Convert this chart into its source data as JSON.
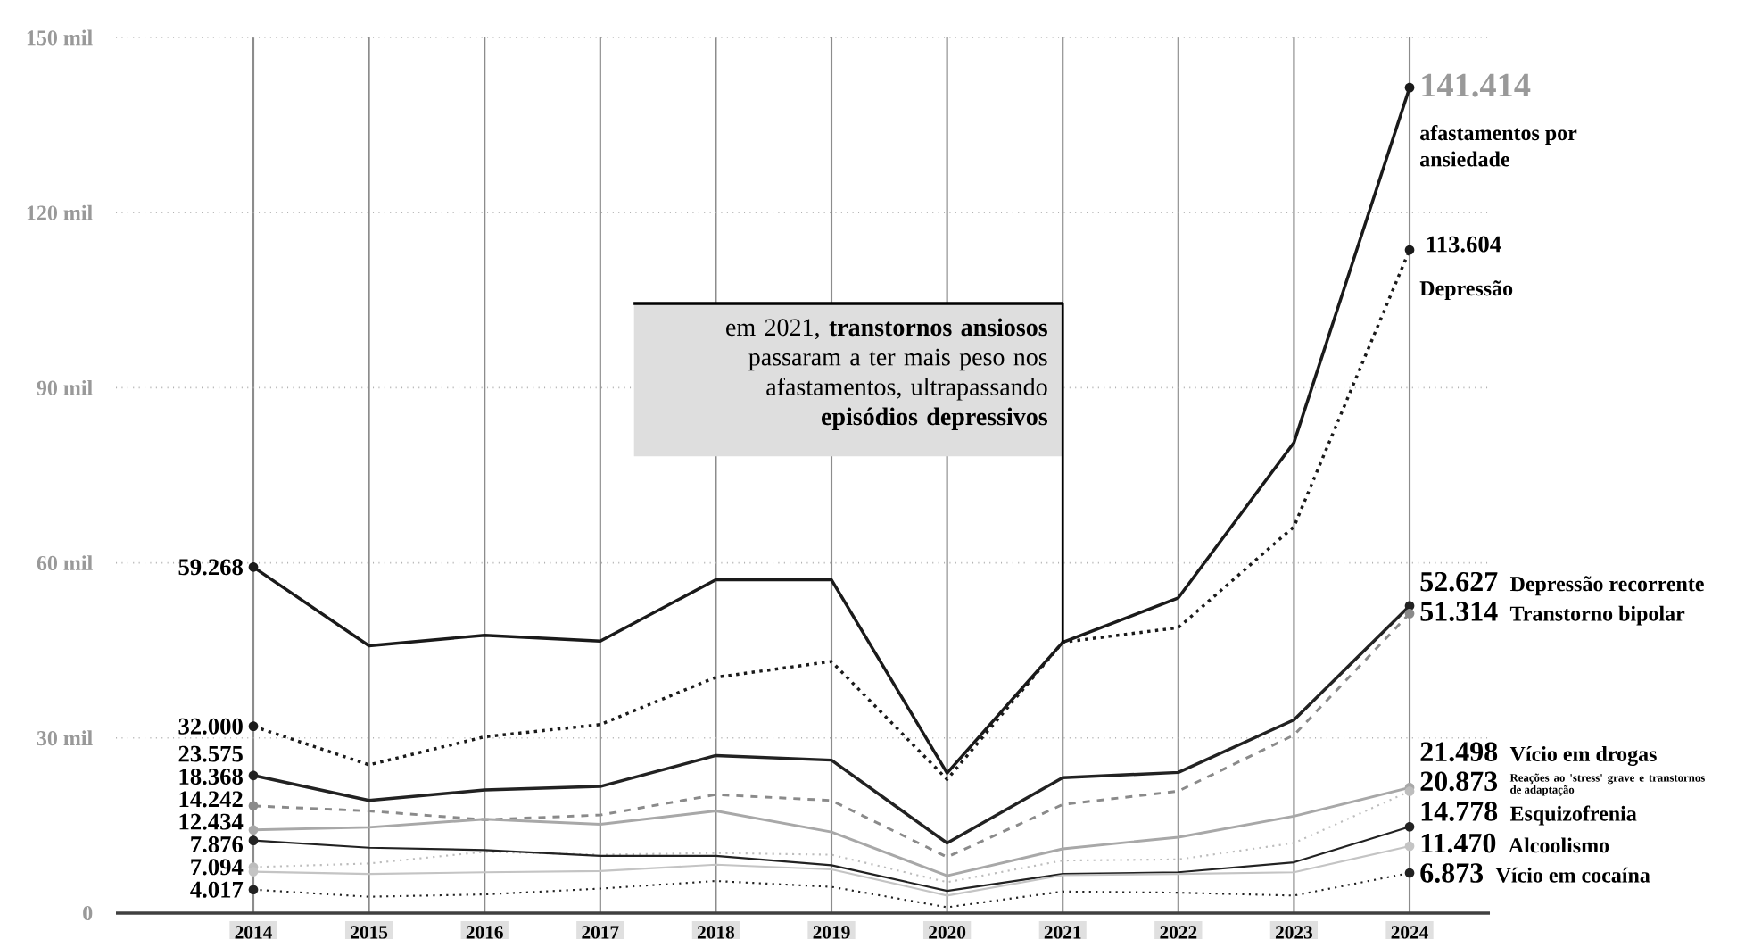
{
  "chart_data": {
    "type": "line",
    "categories": [
      "2014",
      "2015",
      "2016",
      "2017",
      "2018",
      "2019",
      "2020",
      "2021",
      "2022",
      "2023",
      "2024"
    ],
    "series": [
      {
        "name": "afastamentos por ansiedade",
        "color": "#1a1a1a",
        "line_style": "solid",
        "values": [
          59.268,
          45.8,
          47.6,
          46.6,
          57.1,
          57.1,
          24.0,
          46.4,
          54.0,
          80.6,
          141.414
        ],
        "value_labels": [
          "59.268",
          null,
          null,
          null,
          null,
          null,
          null,
          null,
          null,
          null,
          "141.414"
        ]
      },
      {
        "name": "Depressão",
        "color": "#1a1a1a",
        "line_style": "dotted",
        "values": [
          32.0,
          25.4,
          30.2,
          32.3,
          40.4,
          43.1,
          22.9,
          46.4,
          48.9,
          66.2,
          113.604
        ],
        "value_labels": [
          "32.000",
          null,
          null,
          null,
          null,
          null,
          null,
          null,
          null,
          null,
          "113.604"
        ]
      },
      {
        "name": "Depressão recorrente",
        "color": "#222222",
        "line_style": "solid",
        "values": [
          23.575,
          19.3,
          21.1,
          21.7,
          27.0,
          26.2,
          12.0,
          23.2,
          24.1,
          33.1,
          52.627
        ],
        "value_labels": [
          "23.575",
          null,
          null,
          null,
          null,
          null,
          null,
          null,
          null,
          null,
          "52.627"
        ]
      },
      {
        "name": "Transtorno bipolar",
        "color": "#8a8a8a",
        "line_style": "dashed",
        "values": [
          18.368,
          17.5,
          16.0,
          16.8,
          20.3,
          19.3,
          9.6,
          18.6,
          20.9,
          30.5,
          51.314
        ],
        "value_labels": [
          "18.368",
          null,
          null,
          null,
          null,
          null,
          null,
          null,
          null,
          null,
          "51.314"
        ]
      },
      {
        "name": "Vício em drogas",
        "color": "#a8a8a8",
        "line_style": "solid",
        "values": [
          14.242,
          14.7,
          16.1,
          15.2,
          17.5,
          13.9,
          6.4,
          11.0,
          13.0,
          16.6,
          21.498
        ],
        "value_labels": [
          "14.242",
          null,
          null,
          null,
          null,
          null,
          null,
          null,
          null,
          null,
          "21.498"
        ]
      },
      {
        "name": "Reações ao 'stress' grave e transtornos de adaptação",
        "color": "#bdbdbd",
        "line_style": "dotted",
        "values": [
          7.876,
          8.5,
          10.5,
          10.0,
          10.3,
          10.0,
          5.3,
          9.0,
          9.2,
          12.0,
          20.873
        ],
        "value_labels": [
          "7.876",
          null,
          null,
          null,
          null,
          null,
          null,
          null,
          null,
          null,
          "20.873"
        ]
      },
      {
        "name": "Esquizofrenia",
        "color": "#222222",
        "line_style": "solid",
        "values": [
          12.434,
          11.2,
          10.8,
          9.8,
          9.8,
          8.2,
          3.8,
          6.7,
          7.0,
          8.7,
          14.778
        ],
        "value_labels": [
          "12.434",
          null,
          null,
          null,
          null,
          null,
          null,
          null,
          null,
          null,
          "14.778"
        ]
      },
      {
        "name": "Alcoolismo",
        "color": "#c4c4c4",
        "line_style": "solid",
        "values": [
          7.094,
          6.7,
          7.0,
          7.2,
          8.3,
          7.5,
          3.0,
          6.5,
          6.7,
          7.0,
          11.47
        ],
        "value_labels": [
          "7.094",
          null,
          null,
          null,
          null,
          null,
          null,
          null,
          null,
          null,
          "11.470"
        ]
      },
      {
        "name": "Vício em cocaína",
        "color": "#222222",
        "line_style": "dotted",
        "values": [
          4.017,
          2.8,
          3.2,
          4.2,
          5.5,
          4.5,
          1.0,
          3.7,
          3.5,
          3.0,
          6.873
        ],
        "value_labels": [
          "4.017",
          null,
          null,
          null,
          null,
          null,
          null,
          null,
          null,
          null,
          "6.873"
        ]
      }
    ],
    "ylim": [
      0,
      150
    ],
    "yticks": [
      0,
      {
        "value": 30,
        "label": "30 mil"
      },
      {
        "value": 60,
        "label": "60 mil"
      },
      {
        "value": 90,
        "label": "90 mil"
      },
      {
        "value": 120,
        "label": "120 mil"
      },
      {
        "value": 150,
        "label": "150 mil"
      }
    ],
    "grid": true,
    "annotations": [
      {
        "text": "em 2021, **transtornos ansiosos** passaram a ter mais peso nos afastamentos, ultrapassando **episódios depressivos**",
        "x": "2021",
        "y": 46.4
      }
    ]
  }
}
